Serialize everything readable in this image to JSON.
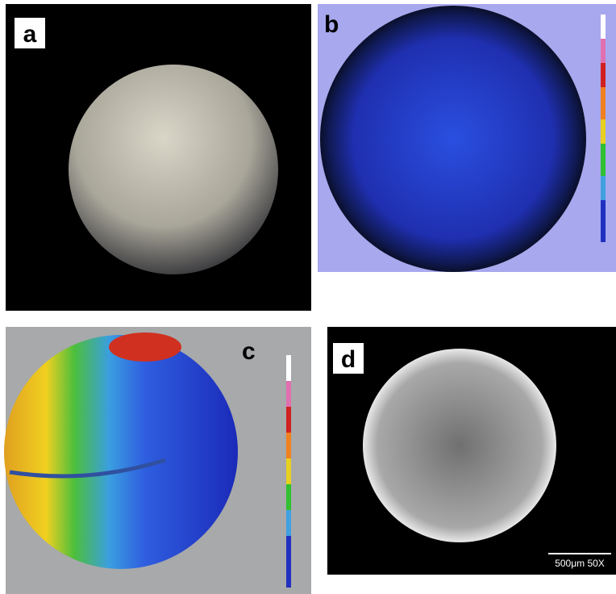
{
  "panels": [
    {
      "label": "a"
    },
    {
      "label": "b"
    },
    {
      "label": "c"
    },
    {
      "label": "d"
    }
  ],
  "scale_bar": "500μm 50X"
}
